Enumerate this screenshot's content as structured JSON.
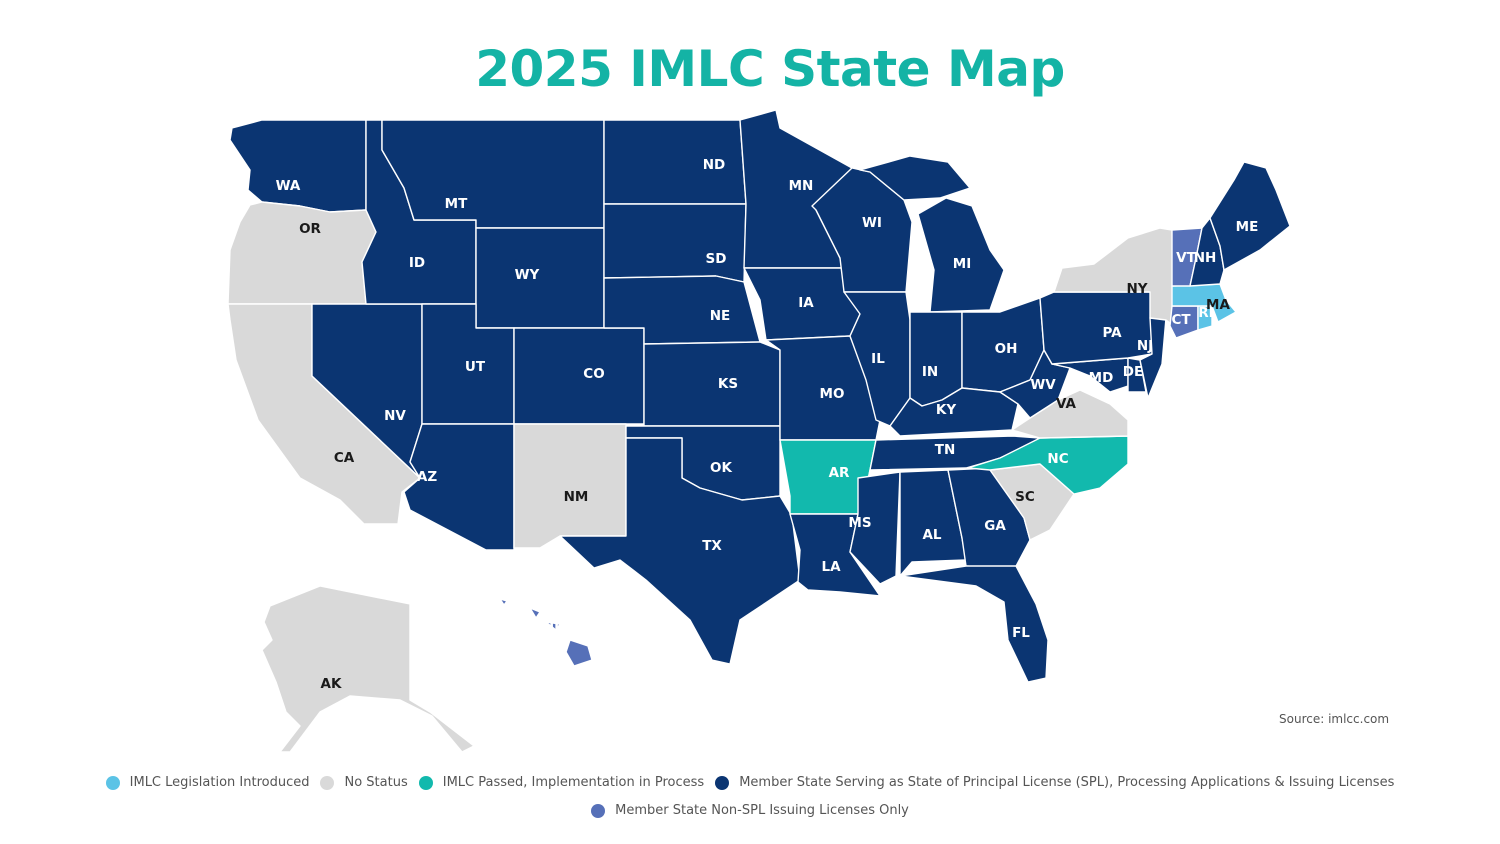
{
  "title": "2025 IMLC State Map",
  "source": "Source: imlcc.com",
  "colors": {
    "title": "#14b3a5",
    "introduced": "#5bc3e6",
    "none": "#d9d9d9",
    "passed": "#12b9ad",
    "spl": "#0b3572",
    "nonspl": "#5670b8"
  },
  "legend": [
    {
      "key": "introduced",
      "label": "IMLC Legislation Introduced"
    },
    {
      "key": "none",
      "label": "No Status"
    },
    {
      "key": "passed",
      "label": "IMLC Passed, Implementation in Process"
    },
    {
      "key": "spl",
      "label": "Member State Serving as State of Principal License (SPL), Processing Applications & Issuing Licenses"
    },
    {
      "key": "nonspl",
      "label": "Member State Non-SPL Issuing Licenses Only"
    }
  ],
  "states": [
    {
      "id": "WA",
      "status": "spl"
    },
    {
      "id": "OR",
      "status": "none"
    },
    {
      "id": "CA",
      "status": "none"
    },
    {
      "id": "NV",
      "status": "spl"
    },
    {
      "id": "ID",
      "status": "spl"
    },
    {
      "id": "MT",
      "status": "spl"
    },
    {
      "id": "WY",
      "status": "spl"
    },
    {
      "id": "UT",
      "status": "spl"
    },
    {
      "id": "AZ",
      "status": "spl"
    },
    {
      "id": "CO",
      "status": "spl"
    },
    {
      "id": "NM",
      "status": "none"
    },
    {
      "id": "ND",
      "status": "spl"
    },
    {
      "id": "SD",
      "status": "spl"
    },
    {
      "id": "NE",
      "status": "spl"
    },
    {
      "id": "KS",
      "status": "spl"
    },
    {
      "id": "OK",
      "status": "spl"
    },
    {
      "id": "TX",
      "status": "spl"
    },
    {
      "id": "MN",
      "status": "spl"
    },
    {
      "id": "IA",
      "status": "spl"
    },
    {
      "id": "MO",
      "status": "spl"
    },
    {
      "id": "AR",
      "status": "passed"
    },
    {
      "id": "LA",
      "status": "spl"
    },
    {
      "id": "WI",
      "status": "spl"
    },
    {
      "id": "IL",
      "status": "spl"
    },
    {
      "id": "MI",
      "status": "spl"
    },
    {
      "id": "IN",
      "status": "spl"
    },
    {
      "id": "OH",
      "status": "spl"
    },
    {
      "id": "KY",
      "status": "spl"
    },
    {
      "id": "TN",
      "status": "spl"
    },
    {
      "id": "MS",
      "status": "spl"
    },
    {
      "id": "AL",
      "status": "spl"
    },
    {
      "id": "GA",
      "status": "spl"
    },
    {
      "id": "FL",
      "status": "spl"
    },
    {
      "id": "SC",
      "status": "none"
    },
    {
      "id": "NC",
      "status": "passed"
    },
    {
      "id": "VA",
      "status": "none"
    },
    {
      "id": "WV",
      "status": "spl"
    },
    {
      "id": "MD",
      "status": "spl"
    },
    {
      "id": "DE",
      "status": "spl"
    },
    {
      "id": "PA",
      "status": "spl"
    },
    {
      "id": "NJ",
      "status": "spl"
    },
    {
      "id": "NY",
      "status": "none"
    },
    {
      "id": "CT",
      "status": "nonspl"
    },
    {
      "id": "RI",
      "status": "introduced"
    },
    {
      "id": "MA",
      "status": "introduced"
    },
    {
      "id": "VT",
      "status": "nonspl"
    },
    {
      "id": "NH",
      "status": "spl"
    },
    {
      "id": "ME",
      "status": "spl"
    },
    {
      "id": "AK",
      "status": "none"
    },
    {
      "id": "HI",
      "status": "nonspl"
    }
  ]
}
